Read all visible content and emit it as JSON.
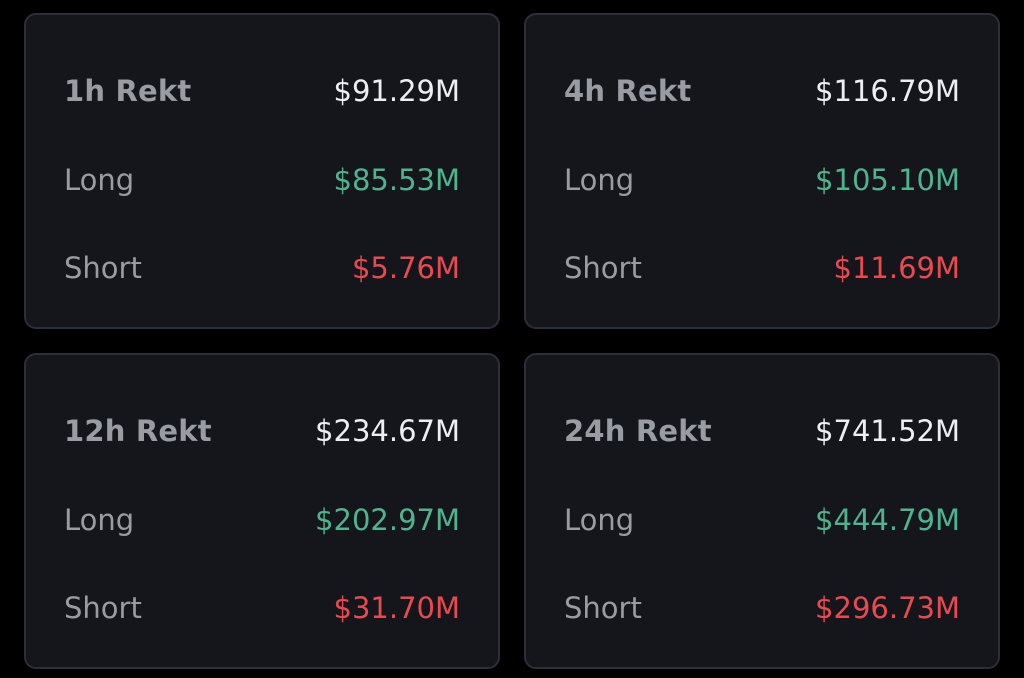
{
  "colors": {
    "background": "#000000",
    "card_background": "#14161c",
    "card_border": "#2b2f37",
    "label": "#9a9ca3",
    "total_value": "#eceef1",
    "long_value": "#4fb48d",
    "short_value": "#e84a50"
  },
  "labels": {
    "long": "Long",
    "short": "Short"
  },
  "cards": [
    {
      "title": "1h Rekt",
      "total": "$91.29M",
      "long": "$85.53M",
      "short": "$5.76M"
    },
    {
      "title": "4h Rekt",
      "total": "$116.79M",
      "long": "$105.10M",
      "short": "$11.69M"
    },
    {
      "title": "12h Rekt",
      "total": "$234.67M",
      "long": "$202.97M",
      "short": "$31.70M"
    },
    {
      "title": "24h Rekt",
      "total": "$741.52M",
      "long": "$444.79M",
      "short": "$296.73M"
    }
  ]
}
